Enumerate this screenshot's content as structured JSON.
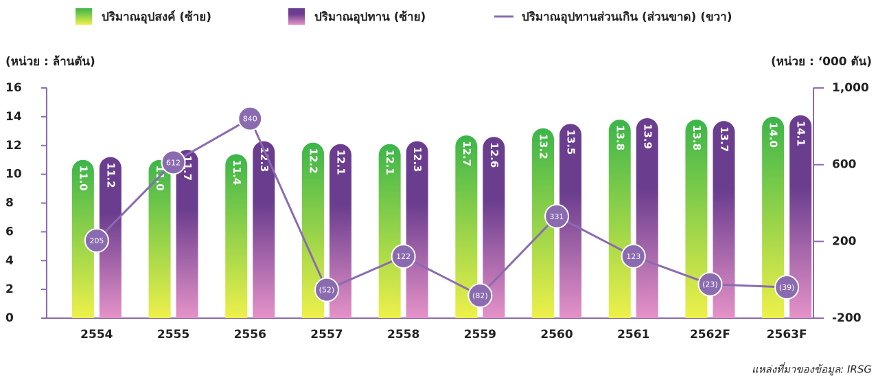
{
  "chart_data": {
    "type": "bar_line",
    "categories": [
      "2554",
      "2555",
      "2556",
      "2557",
      "2558",
      "2559",
      "2560",
      "2561",
      "2562F",
      "2563F"
    ],
    "series": [
      {
        "name": "ปริมาณอุปสงค์ (ซ้าย)",
        "color": "#3cb54a",
        "values": [
          11.0,
          11.0,
          11.4,
          12.2,
          12.1,
          12.7,
          13.2,
          13.8,
          13.8,
          14.0
        ],
        "value_labels": [
          "11.0",
          "11.0",
          "11.4",
          "12.2",
          "12.1",
          "12.7",
          "13.2",
          "13.8",
          "13.8",
          "14.0"
        ]
      },
      {
        "name": "ปริมาณอุปทาน (ซ้าย)",
        "color": "#6a3d8e",
        "values": [
          11.2,
          11.7,
          12.3,
          12.1,
          12.3,
          12.6,
          13.5,
          13.9,
          13.7,
          14.1
        ],
        "value_labels": [
          "11.2",
          "11.7",
          "12.3",
          "12.1",
          "12.3",
          "12.6",
          "13.5",
          "13.9",
          "13.7",
          "14.1"
        ]
      },
      {
        "name": "ปริมาณอุปทานส่วนเกิน (ส่วนขาด) (ขวา)",
        "color": "#8b6bb0",
        "axis": "y2",
        "values": [
          205,
          612,
          840,
          -52,
          122,
          -82,
          331,
          123,
          -23,
          -39
        ],
        "value_labels": [
          "205",
          "612",
          "840",
          "(52)",
          "122",
          "(82)",
          "331",
          "123",
          "(23)",
          "(39)"
        ]
      }
    ],
    "ylabel": "(หน่วย : ล้านตัน)",
    "y2label": "(หน่วย : ‘000 ตัน)",
    "ylim": [
      0,
      16
    ],
    "yticks": [
      0,
      2,
      4,
      6,
      8,
      10,
      12,
      14,
      16
    ],
    "y2lim": [
      -200,
      1000
    ],
    "y2ticks": [
      -200,
      200,
      600,
      {
        "value": 1000,
        "label": "1,000"
      }
    ],
    "source": "แหล่งที่มาของข้อมูล: IRSG"
  }
}
